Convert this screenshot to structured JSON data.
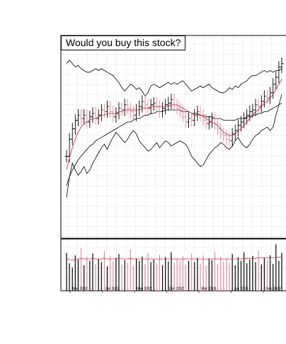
{
  "title": "Would you buy this stock?",
  "colors": {
    "up": "#000000",
    "down": "#e8899a",
    "moving_average_short": "#d8304f",
    "moving_average_long": "#000000",
    "relative_strength": "#000000",
    "grid": "#e6e6e6",
    "frame": "#000000"
  },
  "chart_data": [
    {
      "type": "ohlc",
      "panel": "price",
      "title": "Would you buy this stock?",
      "x_tick_labels": [
        "Mar 2002",
        "Jun 2002",
        "Sep 2002",
        "Dec 2002",
        "Mar 2003",
        "Jun 2003",
        "Sep 2003"
      ],
      "y_tick_labels": [],
      "grid": true,
      "price_close": [
        42,
        52,
        58,
        63,
        66,
        64,
        66,
        62,
        65,
        67,
        64,
        66,
        69,
        68,
        71,
        68,
        65,
        67,
        70,
        69,
        72,
        70,
        68,
        66,
        69,
        71,
        74,
        72,
        70,
        72,
        73,
        71,
        68,
        70,
        72,
        73,
        75,
        72,
        70,
        68,
        65,
        62,
        64,
        63,
        66,
        68,
        66,
        63,
        61,
        62,
        64,
        61,
        58,
        55,
        54,
        52,
        51,
        55,
        57,
        60,
        62,
        64,
        66,
        68,
        69,
        72,
        71,
        74,
        77,
        76,
        79,
        84,
        88,
        94,
        96
      ],
      "moving_average_short": [
        34,
        41,
        47,
        52,
        56,
        59,
        61,
        62,
        63,
        64,
        64,
        65,
        66,
        66,
        67,
        67,
        67,
        67,
        68,
        68,
        69,
        69,
        69,
        69,
        69,
        69,
        70,
        70,
        70,
        71,
        71,
        71,
        71,
        71,
        71,
        71,
        72,
        72,
        72,
        71,
        70,
        69,
        68,
        67,
        66,
        66,
        66,
        65,
        64,
        63,
        62,
        61,
        60,
        58,
        56,
        55,
        54,
        54,
        55,
        57,
        58,
        60,
        62,
        64,
        66,
        68,
        69,
        71,
        73,
        74,
        76,
        78,
        81,
        84,
        87
      ],
      "moving_average_long": [
        25,
        30,
        34,
        37,
        40,
        42,
        44,
        46,
        48,
        49,
        51,
        52,
        53,
        54,
        55,
        56,
        57,
        58,
        59,
        60,
        61,
        62,
        62,
        63,
        64,
        64,
        65,
        66,
        66,
        67,
        67,
        68,
        68,
        68,
        69,
        69,
        69,
        69,
        69,
        69,
        68,
        68,
        68,
        67,
        67,
        67,
        66,
        66,
        65,
        65,
        65,
        64,
        64,
        64,
        63,
        63,
        63,
        63,
        63,
        64,
        64,
        64,
        65,
        65,
        66,
        66,
        67,
        67,
        68,
        68,
        69,
        70,
        71,
        72,
        73
      ],
      "relative_strength": [
        18,
        30,
        38,
        34,
        31,
        33,
        36,
        32,
        34,
        38,
        41,
        44,
        47,
        49,
        46,
        50,
        53,
        56,
        54,
        52,
        50,
        52,
        55,
        57,
        55,
        51,
        49,
        47,
        45,
        46,
        48,
        50,
        47,
        49,
        51,
        50,
        48,
        49,
        50,
        51,
        50,
        49,
        46,
        42,
        40,
        38,
        36,
        37,
        40,
        43,
        45,
        47,
        48,
        50,
        49,
        47,
        46,
        48,
        51,
        53,
        50,
        48,
        47,
        49,
        52,
        54,
        55,
        57,
        58,
        59,
        57,
        59,
        66,
        72,
        78
      ],
      "upper_line": [
        96,
        98,
        96,
        94,
        95,
        93,
        92,
        91,
        91,
        92,
        93,
        92,
        93,
        92,
        91,
        90,
        89,
        87,
        85,
        82,
        80,
        82,
        84,
        83,
        81,
        82,
        80,
        77,
        79,
        83,
        84,
        83,
        82,
        83,
        84,
        85,
        84,
        85,
        84,
        85,
        86,
        84,
        82,
        80,
        81,
        82,
        83,
        82,
        83,
        84,
        82,
        81,
        80,
        79,
        79,
        80,
        82,
        81,
        83,
        82,
        84,
        85,
        86,
        88,
        89,
        89,
        90,
        91,
        92,
        91,
        92,
        91,
        92,
        92,
        93
      ]
    },
    {
      "type": "bar",
      "panel": "volume",
      "values": [
        62,
        45,
        38,
        58,
        51,
        70,
        42,
        55,
        49,
        61,
        44,
        52,
        47,
        65,
        40,
        57,
        48,
        54,
        60,
        43,
        50,
        46,
        68,
        41,
        53,
        49,
        56,
        44,
        62,
        47,
        51,
        45,
        59,
        42,
        55,
        48,
        63,
        46,
        52,
        50,
        57,
        43,
        49,
        61,
        47,
        54,
        45,
        58,
        41,
        53,
        50,
        64,
        44,
        56,
        48,
        52,
        46,
        60,
        42,
        55,
        49,
        63,
        45,
        51,
        57,
        47,
        66,
        43,
        54,
        50,
        58,
        44,
        76,
        49,
        62
      ],
      "moving_average": [
        52,
        51,
        50,
        51,
        52,
        53,
        52,
        52,
        52,
        53,
        52,
        52,
        52,
        53,
        52,
        52,
        52,
        52,
        53,
        52,
        52,
        52,
        53,
        52,
        52,
        52,
        52,
        52,
        52,
        52,
        52,
        52,
        52,
        52,
        52,
        52,
        52,
        52,
        52,
        52,
        52,
        52,
        52,
        52,
        52,
        52,
        52,
        52,
        52,
        52,
        52,
        52,
        52,
        52,
        52,
        52,
        52,
        52,
        52,
        52,
        52,
        53,
        53,
        53,
        53,
        53,
        54,
        54,
        54,
        54,
        54,
        54,
        55,
        55,
        55
      ]
    }
  ]
}
